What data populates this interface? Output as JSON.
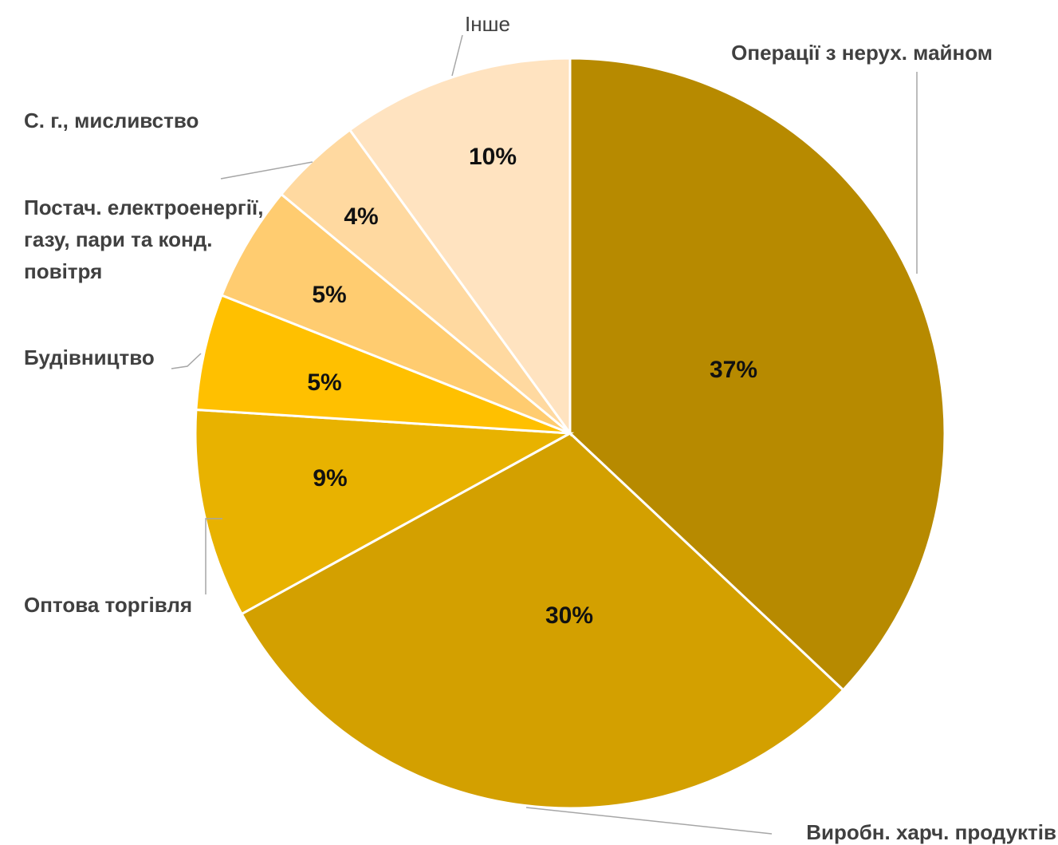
{
  "chart_data": {
    "type": "pie",
    "title": "",
    "unit": "%",
    "slices": [
      {
        "label": "Операції з нерух. майном",
        "value": 37,
        "display": "37%",
        "color": "#B78A00"
      },
      {
        "label": "Виробн. харч. продуктів",
        "value": 30,
        "display": "30%",
        "color": "#D3A000"
      },
      {
        "label": "Оптова торгівля",
        "value": 9,
        "display": "9%",
        "color": "#E8B200"
      },
      {
        "label": "Будівництво",
        "value": 5,
        "display": "5%",
        "color": "#FFC000"
      },
      {
        "label": "Постач. електроенергії, газу, пари та конд. повітря",
        "label_lines": [
          "Постач. електроенергії,",
          "газу, пари та конд.",
          "повітря"
        ],
        "value": 5,
        "display": "5%",
        "color": "#FFCC70"
      },
      {
        "label": "С. г., мисливство",
        "value": 4,
        "display": "4%",
        "color": "#FFD9A0"
      },
      {
        "label": "Інше",
        "value": 10,
        "display": "10%",
        "color": "#FFE3C0"
      }
    ],
    "start_angle": "12 o'clock",
    "direction": "clockwise",
    "legend": "none"
  }
}
